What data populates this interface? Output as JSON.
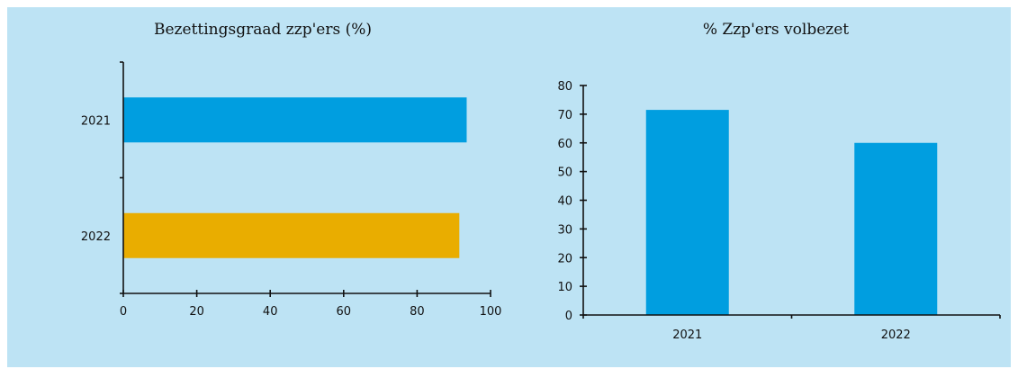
{
  "chart_data": [
    {
      "type": "bar",
      "orientation": "horizontal",
      "title": "Bezettingsgraad zzp'ers (%)",
      "categories": [
        "2021",
        "2022"
      ],
      "values": [
        93.5,
        91.5
      ],
      "colors": [
        "#009ee0",
        "#e9ad00"
      ],
      "xlim": [
        0,
        100
      ],
      "xticks": [
        0,
        20,
        40,
        60,
        80,
        100
      ],
      "grid": false
    },
    {
      "type": "bar",
      "orientation": "vertical",
      "title": "% Zzp'ers volbezet",
      "categories": [
        "2021",
        "2022"
      ],
      "values": [
        71.5,
        60
      ],
      "colors": [
        "#009ee0",
        "#009ee0"
      ],
      "ylim": [
        0,
        80
      ],
      "yticks": [
        0,
        10,
        20,
        30,
        40,
        50,
        60,
        70,
        80
      ],
      "grid": false
    }
  ]
}
